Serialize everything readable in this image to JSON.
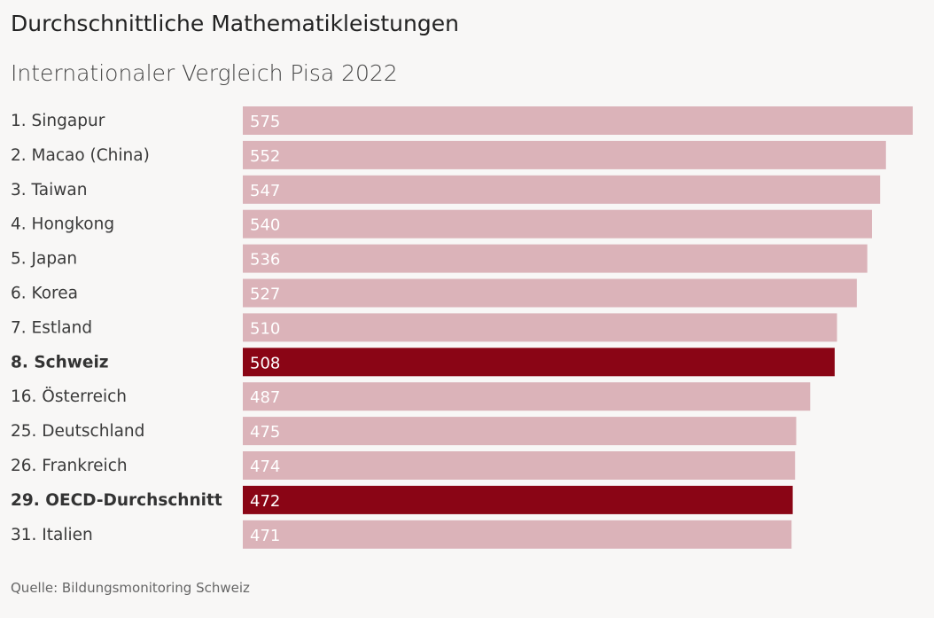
{
  "chart_data": {
    "type": "bar",
    "orientation": "horizontal",
    "title": "Durchschnittliche Mathematikleistungen",
    "subtitle": "Internationaler Vergleich Pisa 2022",
    "categories": [
      "1. Singapur",
      "2. Macao (China)",
      "3. Taiwan",
      "4. Hongkong",
      "5. Japan",
      "6. Korea",
      "7. Estland",
      "8. Schweiz",
      "16. Österreich",
      "25. Deutschland",
      "26. Frankreich",
      "29. OECD-Durchschnitt",
      "31. Italien"
    ],
    "values": [
      575,
      552,
      547,
      540,
      536,
      527,
      510,
      508,
      487,
      475,
      474,
      472,
      471
    ],
    "highlighted": [
      false,
      false,
      false,
      false,
      false,
      false,
      false,
      true,
      false,
      false,
      false,
      true,
      false
    ],
    "xlim": [
      0,
      575
    ],
    "grid": false,
    "legend": "none",
    "data_labels": "inside-left",
    "colors": {
      "default": "#dbb3b9",
      "highlight": "#8a0515"
    },
    "source": "Quelle: Bildungsmonitoring Schweiz"
  }
}
